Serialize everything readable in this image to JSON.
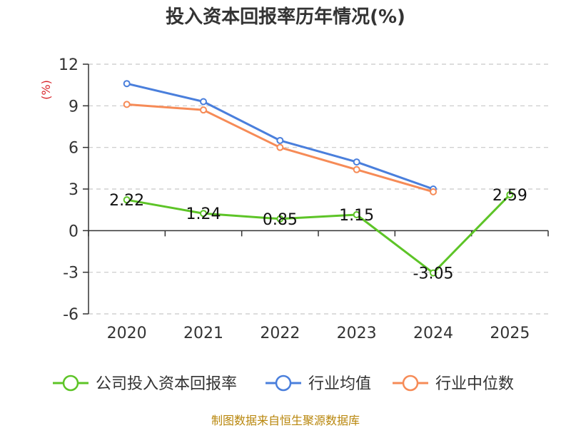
{
  "chart_data": {
    "type": "line",
    "title": "投入资本回报率历年情况(%)",
    "ylabel": "(%)",
    "categories": [
      "2020",
      "2021",
      "2022",
      "2023",
      "2024",
      "2025"
    ],
    "ylim": [
      -6,
      12
    ],
    "yticks": [
      12,
      9,
      6,
      3,
      0,
      -3,
      -6
    ],
    "grid": true,
    "legend_position": "bottom",
    "series": [
      {
        "name": "公司投入资本回报率",
        "color": "#5dc427",
        "values": [
          2.22,
          1.24,
          0.85,
          1.15,
          -3.05,
          2.59
        ],
        "labels": [
          "2.22",
          "1.24",
          "0.85",
          "1.15",
          "-3.05",
          "2.59"
        ]
      },
      {
        "name": "行业均值",
        "color": "#4a7fdc",
        "values": [
          10.6,
          9.3,
          6.5,
          4.95,
          3.0,
          null
        ]
      },
      {
        "name": "行业中位数",
        "color": "#f68b57",
        "values": [
          9.1,
          8.7,
          6.0,
          4.4,
          2.8,
          null
        ]
      }
    ]
  },
  "footer": {
    "source": "制图数据来自恒生聚源数据库"
  }
}
